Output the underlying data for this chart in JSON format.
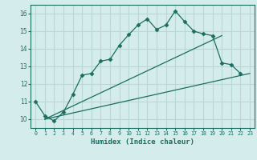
{
  "xlabel": "Humidex (Indice chaleur)",
  "bg_color": "#d5ecec",
  "grid_color": "#b8d8d8",
  "line_color": "#1a6e60",
  "xlim": [
    -0.5,
    23.5
  ],
  "ylim": [
    9.5,
    16.5
  ],
  "xticks": [
    0,
    1,
    2,
    3,
    4,
    5,
    6,
    7,
    8,
    9,
    10,
    11,
    12,
    13,
    14,
    15,
    16,
    17,
    18,
    19,
    20,
    21,
    22,
    23
  ],
  "yticks": [
    10,
    11,
    12,
    13,
    14,
    15,
    16
  ],
  "series1_x": [
    0,
    1,
    2,
    3,
    4,
    5,
    6,
    7,
    8,
    9,
    10,
    11,
    12,
    13,
    14,
    15,
    16,
    17,
    18,
    19,
    20,
    21,
    22
  ],
  "series1_y": [
    11.0,
    10.2,
    9.9,
    10.4,
    11.4,
    12.5,
    12.6,
    13.3,
    13.4,
    14.2,
    14.8,
    15.35,
    15.7,
    15.1,
    15.35,
    16.15,
    15.55,
    15.0,
    14.85,
    14.75,
    13.2,
    13.1,
    12.6
  ],
  "series2_x": [
    1,
    20
  ],
  "series2_y": [
    10.0,
    14.75
  ],
  "series3_x": [
    1,
    23
  ],
  "series3_y": [
    10.0,
    12.6
  ],
  "marker": "D",
  "markersize": 2.5
}
